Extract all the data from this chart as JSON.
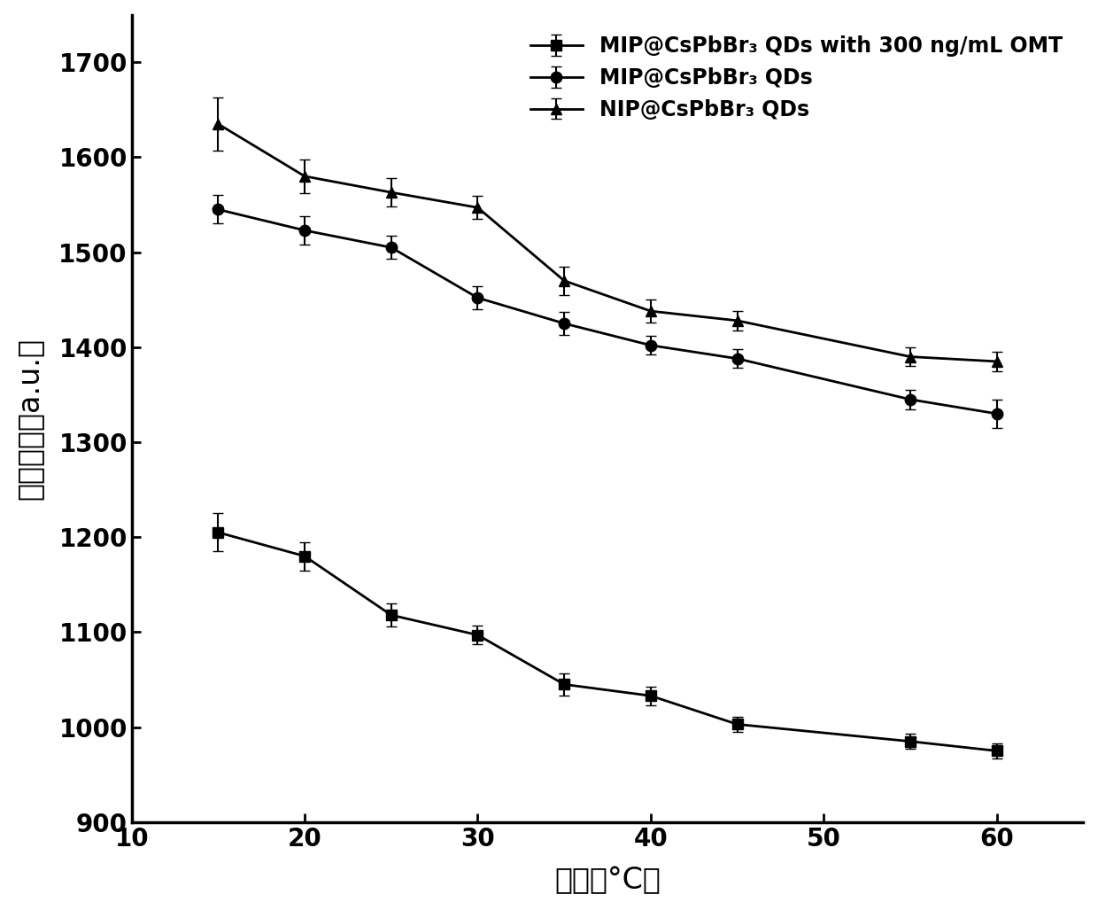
{
  "x": [
    15,
    20,
    25,
    30,
    35,
    40,
    45,
    55,
    60
  ],
  "series1_y": [
    1205,
    1180,
    1118,
    1097,
    1045,
    1033,
    1003,
    985,
    975
  ],
  "series1_yerr": [
    20,
    15,
    12,
    10,
    12,
    10,
    8,
    8,
    8
  ],
  "series1_label": "MIP@CsPbBr₃ QDs with 300 ng/mL OMT",
  "series1_marker": "s",
  "series2_y": [
    1545,
    1523,
    1505,
    1452,
    1425,
    1402,
    1388,
    1345,
    1330
  ],
  "series2_yerr": [
    15,
    15,
    12,
    12,
    12,
    10,
    10,
    10,
    15
  ],
  "series2_label": "MIP@CsPbBr₃ QDs",
  "series2_marker": "o",
  "series3_y": [
    1635,
    1580,
    1563,
    1547,
    1470,
    1438,
    1428,
    1390,
    1385
  ],
  "series3_yerr": [
    28,
    18,
    15,
    12,
    15,
    12,
    10,
    10,
    10
  ],
  "series3_label": "NIP@CsPbBr₃ QDs",
  "series3_marker": "^",
  "xlabel": "温度（°C）",
  "ylabel": "荧光强度（a.u.）",
  "xlim": [
    10,
    65
  ],
  "ylim": [
    900,
    1750
  ],
  "xticks": [
    10,
    20,
    30,
    40,
    50,
    60
  ],
  "yticks": [
    900,
    1000,
    1100,
    1200,
    1300,
    1400,
    1500,
    1600,
    1700
  ],
  "color": "#000000",
  "linewidth": 2.0,
  "markersize": 9,
  "capsize": 4,
  "elinewidth": 1.5,
  "tick_fontsize": 20,
  "label_fontsize": 24,
  "legend_fontsize": 17
}
